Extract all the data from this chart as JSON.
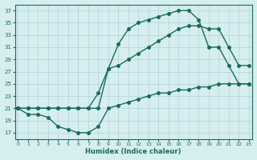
{
  "bg_color": "#d6eef0",
  "grid_color": "#b0d4d8",
  "line_color": "#1a6b5a",
  "xlabel": "Humidex (Indice chaleur)",
  "ylim": [
    16,
    38
  ],
  "xlim": [
    0,
    23
  ],
  "yticks": [
    17,
    19,
    21,
    23,
    25,
    27,
    29,
    31,
    33,
    35,
    37
  ],
  "xticks": [
    0,
    1,
    2,
    3,
    4,
    5,
    6,
    7,
    8,
    9,
    10,
    11,
    12,
    13,
    14,
    15,
    16,
    17,
    18,
    19,
    20,
    21,
    22,
    23
  ],
  "line_min": {
    "x": [
      0,
      1,
      2,
      3,
      4,
      5,
      6,
      7,
      8,
      9,
      10,
      11,
      12,
      13,
      14,
      15,
      16,
      17,
      18,
      19,
      20,
      21,
      22,
      23
    ],
    "y": [
      21,
      20,
      20,
      19.5,
      18,
      17.5,
      17,
      17,
      18,
      21,
      21.5,
      22,
      22.5,
      23,
      23.5,
      23.5,
      24,
      24,
      24.5,
      24.5,
      25,
      25,
      25,
      25
    ]
  },
  "line_max": {
    "x": [
      0,
      1,
      2,
      3,
      4,
      5,
      6,
      7,
      8,
      9,
      10,
      11,
      12,
      13,
      14,
      15,
      16,
      17,
      18,
      19,
      20,
      21,
      22,
      23
    ],
    "y": [
      21,
      21,
      21,
      21,
      21,
      21,
      21,
      21,
      21,
      27.5,
      31.5,
      34,
      35,
      35.5,
      36,
      36.5,
      37,
      37,
      35.5,
      31,
      31,
      28,
      25,
      25
    ]
  },
  "line_avg": {
    "x": [
      0,
      1,
      2,
      3,
      4,
      5,
      6,
      7,
      8,
      9,
      10,
      11,
      12,
      13,
      14,
      15,
      16,
      17,
      18,
      19,
      20,
      21,
      22,
      23
    ],
    "y": [
      21,
      21,
      21,
      21,
      21,
      21,
      21,
      21,
      23.5,
      27.5,
      28,
      29,
      30,
      31,
      32,
      33,
      34,
      34.5,
      34.5,
      34,
      34,
      31,
      28,
      28
    ]
  }
}
